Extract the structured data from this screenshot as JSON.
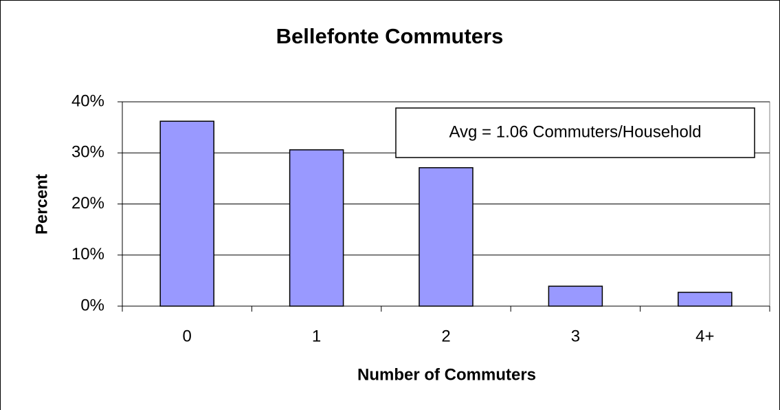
{
  "chart_data": {
    "type": "bar",
    "title": "Bellefonte Commuters",
    "x_label": "Number of Commuters",
    "y_label": "Percent",
    "annotation": "Avg = 1.06 Commuters/Household",
    "categories": [
      "0",
      "1",
      "2",
      "3",
      "4+"
    ],
    "values": [
      36.2,
      30.6,
      27.1,
      3.9,
      2.7
    ],
    "color": "#9999ff",
    "ylim": [
      0,
      40
    ],
    "yticks": [
      {
        "value": 0,
        "label": "0%"
      },
      {
        "value": 10,
        "label": "10%"
      },
      {
        "value": 20,
        "label": "20%"
      },
      {
        "value": 30,
        "label": "30%"
      },
      {
        "value": 40,
        "label": "40%"
      }
    ],
    "grid": true
  }
}
